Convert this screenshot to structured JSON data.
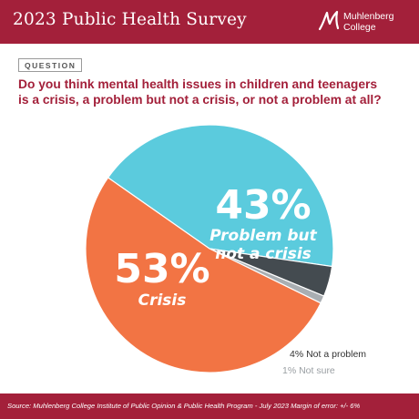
{
  "header": {
    "title": "2023 Public Health Survey",
    "logo_line1": "Muhlenberg",
    "logo_line2": "College"
  },
  "question": {
    "tag": "QUESTION",
    "line1": "Do you think mental health issues in children and teenagers",
    "line2": "is a crisis, a problem but not a crisis, or not a problem at all?"
  },
  "colors": {
    "brand": "#a3203a",
    "crisis": "#f27444",
    "problem": "#5bcbdd",
    "not_problem": "#444b50",
    "not_sure": "#a9aeb2"
  },
  "chart_data": {
    "type": "pie",
    "slices": [
      {
        "label": "Problem but not a crisis",
        "label_line1": "Problem but",
        "label_line2": "not a crisis",
        "value": 43,
        "pct": "43%"
      },
      {
        "label": "Not a problem",
        "value": 4,
        "pct": "4%"
      },
      {
        "label": "Not sure",
        "value": 1,
        "pct": "1%"
      },
      {
        "label": "Crisis",
        "value": 53,
        "pct": "53%"
      }
    ]
  },
  "footer": {
    "source": "Source: Muhlenberg College Institute of Public Opinion & Public Health Program - July 2023 Margin of error: +/- 6%"
  }
}
